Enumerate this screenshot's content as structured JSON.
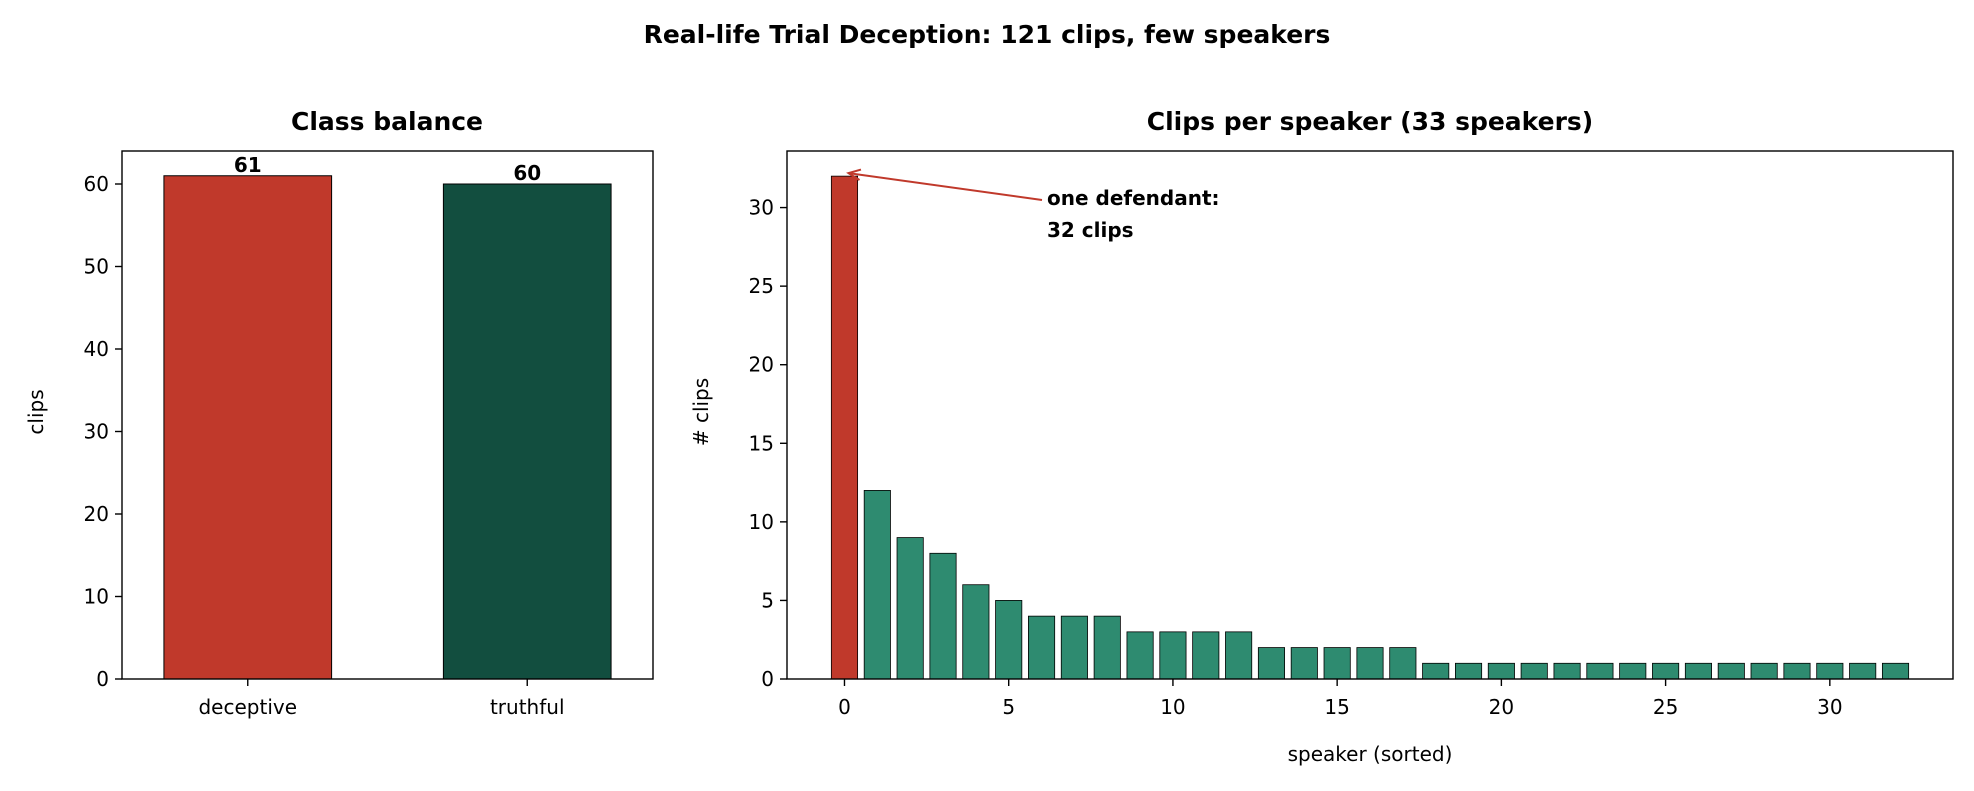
{
  "suptitle": "Real-life Trial Deception: 121 clips, few speakers",
  "chart_data": [
    {
      "type": "bar",
      "title": "Class balance",
      "xlabel": "",
      "ylabel": "clips",
      "categories": [
        "deceptive",
        "truthful"
      ],
      "values": [
        61,
        60
      ],
      "data_labels": [
        "61",
        "60"
      ],
      "colors": [
        "#c0392b",
        "#124e3f"
      ],
      "ylim": [
        0,
        64
      ],
      "yticks": [
        0,
        10,
        20,
        30,
        40,
        50,
        60
      ],
      "grid": false
    },
    {
      "type": "bar",
      "title": "Clips per speaker (33 speakers)",
      "xlabel": "speaker (sorted)",
      "ylabel": "# clips",
      "x": [
        0,
        1,
        2,
        3,
        4,
        5,
        6,
        7,
        8,
        9,
        10,
        11,
        12,
        13,
        14,
        15,
        16,
        17,
        18,
        19,
        20,
        21,
        22,
        23,
        24,
        25,
        26,
        27,
        28,
        29,
        30,
        31,
        32
      ],
      "values": [
        32,
        12,
        9,
        8,
        6,
        5,
        4,
        4,
        4,
        3,
        3,
        3,
        3,
        2,
        2,
        2,
        2,
        2,
        1,
        1,
        1,
        1,
        1,
        1,
        1,
        1,
        1,
        1,
        1,
        1,
        1,
        1,
        1
      ],
      "colors": {
        "highlight": "#c0392b",
        "default": "#2e8b70"
      },
      "highlight_index": 0,
      "xlim": [
        -1.75,
        33.75
      ],
      "ylim": [
        0,
        33.6
      ],
      "xticks": [
        0,
        5,
        10,
        15,
        20,
        25,
        30
      ],
      "yticks": [
        0,
        5,
        10,
        15,
        20,
        25,
        30
      ],
      "annotation": {
        "lines": [
          "one defendant:",
          "32 clips"
        ],
        "color": "#c0392b",
        "target_x": 0,
        "target_y": 32
      },
      "grid": false
    }
  ]
}
